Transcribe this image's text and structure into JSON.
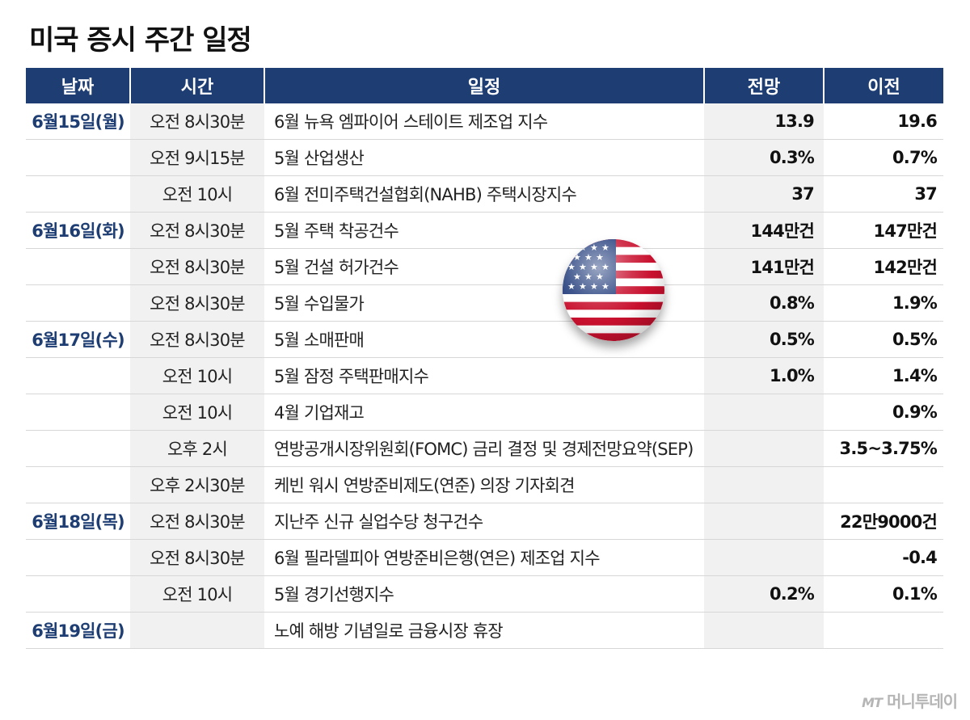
{
  "title": "미국 증시 주간 일정",
  "headers": [
    "날짜",
    "시간",
    "일정",
    "전망",
    "이전"
  ],
  "rows": [
    {
      "date": "6월15일(월)",
      "time": "오전 8시30분",
      "event": "6월 뉴욕 엠파이어 스테이트 제조업 지수",
      "forecast": "13.9",
      "previous": "19.6"
    },
    {
      "date": "",
      "time": "오전 9시15분",
      "event": "5월 산업생산",
      "forecast": "0.3%",
      "previous": "0.7%"
    },
    {
      "date": "",
      "time": "오전 10시",
      "event": "6월 전미주택건설협회(NAHB) 주택시장지수",
      "forecast": "37",
      "previous": "37"
    },
    {
      "date": "6월16일(화)",
      "time": "오전 8시30분",
      "event": "5월 주택 착공건수",
      "forecast": "144만건",
      "previous": "147만건"
    },
    {
      "date": "",
      "time": "오전 8시30분",
      "event": "5월 건설 허가건수",
      "forecast": "141만건",
      "previous": "142만건"
    },
    {
      "date": "",
      "time": "오전 8시30분",
      "event": "5월 수입물가",
      "forecast": "0.8%",
      "previous": "1.9%"
    },
    {
      "date": "6월17일(수)",
      "time": "오전 8시30분",
      "event": "5월 소매판매",
      "forecast": "0.5%",
      "previous": "0.5%"
    },
    {
      "date": "",
      "time": "오전 10시",
      "event": "5월 잠정 주택판매지수",
      "forecast": "1.0%",
      "previous": "1.4%"
    },
    {
      "date": "",
      "time": "오전 10시",
      "event": "4월 기업재고",
      "forecast": "",
      "previous": "0.9%"
    },
    {
      "date": "",
      "time": "오후 2시",
      "event": "연방공개시장위원회(FOMC) 금리 결정 및 경제전망요약(SEP)",
      "forecast": "",
      "previous": "3.5~3.75%"
    },
    {
      "date": "",
      "time": "오후 2시30분",
      "event": "케빈 워시 연방준비제도(연준) 의장 기자회견",
      "forecast": "",
      "previous": ""
    },
    {
      "date": "6월18일(목)",
      "time": "오전 8시30분",
      "event": "지난주 신규 실업수당 청구건수",
      "forecast": "",
      "previous": "22만9000건"
    },
    {
      "date": "",
      "time": "오전 8시30분",
      "event": "6월 필라델피아 연방준비은행(연은) 제조업 지수",
      "forecast": "",
      "previous": "-0.4"
    },
    {
      "date": "",
      "time": "오전 10시",
      "event": "5월 경기선행지수",
      "forecast": "0.2%",
      "previous": "0.1%"
    },
    {
      "date": "6월19일(금)",
      "time": "",
      "event": "노예 해방 기념일로 금융시장 휴장",
      "forecast": "",
      "previous": ""
    }
  ],
  "logo": {
    "mark": "MT",
    "name": "머니투데이"
  },
  "colors": {
    "header_bg": "#1d3d73",
    "date_text": "#1d3d73",
    "shade": "#f1f1f1"
  },
  "icon": "us-flag-sphere-icon"
}
